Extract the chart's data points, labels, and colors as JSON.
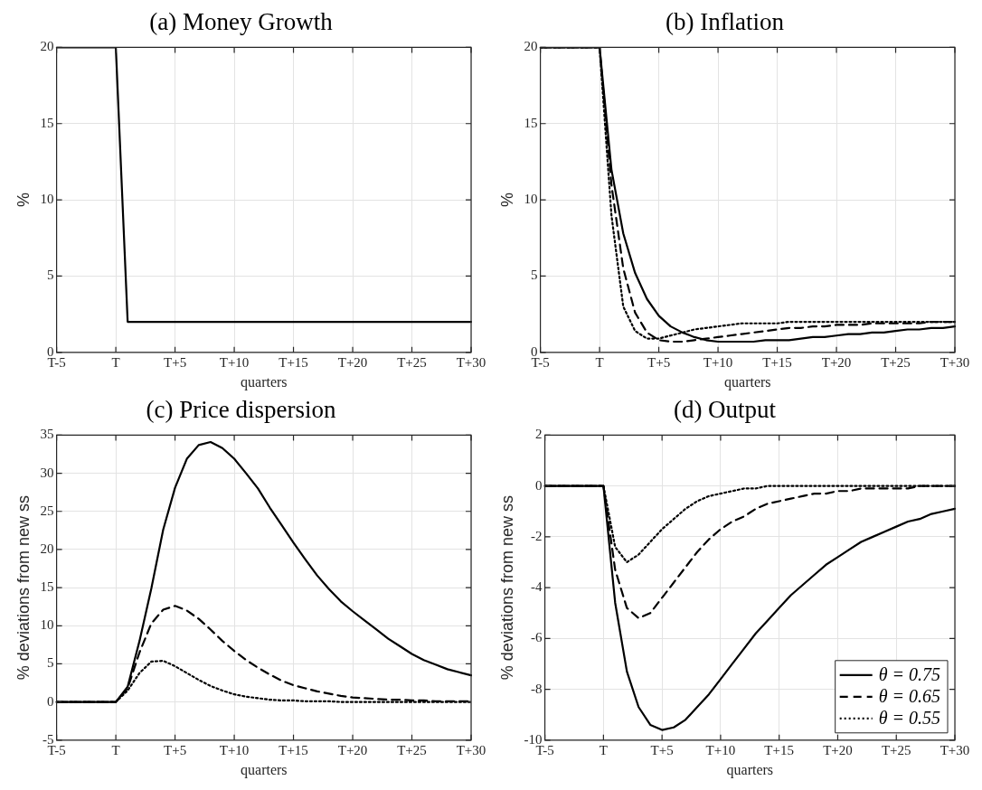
{
  "chart_data": [
    {
      "type": "line",
      "title": "(a) Money Growth",
      "xlabel": "quarters",
      "ylabel": "%",
      "categories": [
        "T-5",
        null,
        null,
        null,
        null,
        "T",
        null,
        null,
        null,
        null,
        "T+5",
        null,
        null,
        null,
        null,
        "T+10",
        null,
        null,
        null,
        null,
        "T+15",
        null,
        null,
        null,
        null,
        "T+20",
        null,
        null,
        null,
        null,
        "T+25",
        null,
        null,
        null,
        null,
        "T+30"
      ],
      "ylim": [
        0,
        20
      ],
      "yticks": [
        0,
        5,
        10,
        15,
        20
      ],
      "grid": true,
      "legend": false,
      "marker": "none",
      "series": [
        {
          "color": "#000000",
          "line_style": "solid",
          "values": [
            20,
            20,
            20,
            20,
            20,
            20,
            2,
            2,
            2,
            2,
            2,
            2,
            2,
            2,
            2,
            2,
            2,
            2,
            2,
            2,
            2,
            2,
            2,
            2,
            2,
            2,
            2,
            2,
            2,
            2,
            2,
            2,
            2,
            2,
            2,
            2
          ]
        }
      ]
    },
    {
      "type": "line",
      "title": "(b) Inflation",
      "xlabel": "quarters",
      "ylabel": "%",
      "categories": [
        "T-5",
        null,
        null,
        null,
        null,
        "T",
        null,
        null,
        null,
        null,
        "T+5",
        null,
        null,
        null,
        null,
        "T+10",
        null,
        null,
        null,
        null,
        "T+15",
        null,
        null,
        null,
        null,
        "T+20",
        null,
        null,
        null,
        null,
        "T+25",
        null,
        null,
        null,
        null,
        "T+30"
      ],
      "ylim": [
        0,
        20
      ],
      "yticks": [
        0,
        5,
        10,
        15,
        20
      ],
      "grid": true,
      "legend": false,
      "marker": "none",
      "series": [
        {
          "color": "#000000",
          "line_style": "solid",
          "values": [
            20,
            20,
            20,
            20,
            20,
            20,
            12,
            7.8,
            5.2,
            3.5,
            2.4,
            1.7,
            1.3,
            1.0,
            0.8,
            0.7,
            0.7,
            0.7,
            0.7,
            0.8,
            0.8,
            0.8,
            0.9,
            1.0,
            1.0,
            1.1,
            1.2,
            1.2,
            1.3,
            1.3,
            1.4,
            1.5,
            1.5,
            1.6,
            1.6,
            1.7
          ]
        },
        {
          "color": "#000000",
          "line_style": "dashed",
          "values": [
            20,
            20,
            20,
            20,
            20,
            20,
            11,
            5.5,
            2.6,
            1.3,
            0.8,
            0.7,
            0.7,
            0.8,
            0.9,
            1.0,
            1.1,
            1.2,
            1.3,
            1.4,
            1.5,
            1.6,
            1.6,
            1.7,
            1.7,
            1.8,
            1.8,
            1.8,
            1.9,
            1.9,
            1.9,
            1.9,
            1.9,
            2.0,
            2.0,
            2.0
          ]
        },
        {
          "color": "#000000",
          "line_style": "dotted",
          "values": [
            20,
            20,
            20,
            20,
            20,
            20,
            9,
            3.0,
            1.4,
            0.9,
            0.9,
            1.1,
            1.3,
            1.5,
            1.6,
            1.7,
            1.8,
            1.9,
            1.9,
            1.9,
            1.9,
            2.0,
            2.0,
            2.0,
            2.0,
            2.0,
            2.0,
            2.0,
            2.0,
            2.0,
            2.0,
            2.0,
            2.0,
            2.0,
            2.0,
            2.0
          ]
        }
      ]
    },
    {
      "type": "line",
      "title": "(c) Price dispersion",
      "xlabel": "quarters",
      "ylabel": "% deviations from new ss",
      "categories": [
        "T-5",
        null,
        null,
        null,
        null,
        "T",
        null,
        null,
        null,
        null,
        "T+5",
        null,
        null,
        null,
        null,
        "T+10",
        null,
        null,
        null,
        null,
        "T+15",
        null,
        null,
        null,
        null,
        "T+20",
        null,
        null,
        null,
        null,
        "T+25",
        null,
        null,
        null,
        null,
        "T+30"
      ],
      "ylim": [
        -5,
        35
      ],
      "yticks": [
        -5,
        0,
        5,
        10,
        15,
        20,
        25,
        30,
        35
      ],
      "grid": true,
      "legend": false,
      "marker": "none",
      "series": [
        {
          "color": "#000000",
          "line_style": "solid",
          "values": [
            0,
            0,
            0,
            0,
            0,
            0,
            2,
            8,
            14.9,
            22.6,
            28.1,
            31.9,
            33.7,
            34.1,
            33.3,
            31.9,
            30,
            28,
            25.5,
            23.2,
            20.9,
            18.7,
            16.6,
            14.8,
            13.2,
            11.9,
            10.7,
            9.5,
            8.3,
            7.3,
            6.3,
            5.5,
            4.9,
            4.3,
            3.9,
            3.5
          ]
        },
        {
          "color": "#000000",
          "line_style": "dashed",
          "values": [
            0,
            0,
            0,
            0,
            0,
            0,
            1.8,
            6.5,
            10.3,
            12.1,
            12.6,
            12.0,
            10.9,
            9.5,
            8.0,
            6.7,
            5.5,
            4.5,
            3.6,
            2.8,
            2.2,
            1.8,
            1.4,
            1.1,
            0.8,
            0.6,
            0.5,
            0.4,
            0.3,
            0.3,
            0.2,
            0.2,
            0.1,
            0.1,
            0.1,
            0.1
          ]
        },
        {
          "color": "#000000",
          "line_style": "dotted",
          "values": [
            0,
            0,
            0,
            0,
            0,
            0,
            1.5,
            3.8,
            5.3,
            5.4,
            4.7,
            3.8,
            2.9,
            2.1,
            1.5,
            1.0,
            0.7,
            0.5,
            0.3,
            0.2,
            0.2,
            0.1,
            0.1,
            0.1,
            0,
            0,
            0,
            0,
            0,
            0,
            0,
            0,
            0,
            0,
            0,
            0
          ]
        }
      ]
    },
    {
      "type": "line",
      "title": "(d) Output",
      "xlabel": "quarters",
      "ylabel": "% deviations from new ss",
      "categories": [
        "T-5",
        null,
        null,
        null,
        null,
        "T",
        null,
        null,
        null,
        null,
        "T+5",
        null,
        null,
        null,
        null,
        "T+10",
        null,
        null,
        null,
        null,
        "T+15",
        null,
        null,
        null,
        null,
        "T+20",
        null,
        null,
        null,
        null,
        "T+25",
        null,
        null,
        null,
        null,
        "T+30"
      ],
      "ylim": [
        -10,
        2
      ],
      "yticks": [
        -10,
        -8,
        -6,
        -4,
        -2,
        0,
        2
      ],
      "grid": true,
      "legend": "bottom right",
      "marker": "none",
      "series": [
        {
          "name": "θ = 0.75",
          "color": "#000000",
          "line_style": "solid",
          "values": [
            0,
            0,
            0,
            0,
            0,
            0,
            -4.6,
            -7.3,
            -8.7,
            -9.4,
            -9.6,
            -9.5,
            -9.2,
            -8.7,
            -8.2,
            -7.6,
            -7.0,
            -6.4,
            -5.8,
            -5.3,
            -4.8,
            -4.3,
            -3.9,
            -3.5,
            -3.1,
            -2.8,
            -2.5,
            -2.2,
            -2.0,
            -1.8,
            -1.6,
            -1.4,
            -1.3,
            -1.1,
            -1.0,
            -0.9
          ]
        },
        {
          "name": "θ = 0.65",
          "color": "#000000",
          "line_style": "dashed",
          "values": [
            0,
            0,
            0,
            0,
            0,
            0,
            -3.3,
            -4.8,
            -5.2,
            -5.0,
            -4.4,
            -3.8,
            -3.2,
            -2.6,
            -2.1,
            -1.7,
            -1.4,
            -1.2,
            -0.9,
            -0.7,
            -0.6,
            -0.5,
            -0.4,
            -0.3,
            -0.3,
            -0.2,
            -0.2,
            -0.1,
            -0.1,
            -0.1,
            -0.1,
            -0.1,
            0,
            0,
            0,
            0
          ]
        },
        {
          "name": "θ = 0.55",
          "color": "#000000",
          "line_style": "dotted",
          "values": [
            0,
            0,
            0,
            0,
            0,
            0,
            -2.4,
            -3.0,
            -2.7,
            -2.2,
            -1.7,
            -1.3,
            -0.9,
            -0.6,
            -0.4,
            -0.3,
            -0.2,
            -0.1,
            -0.1,
            0,
            0,
            0,
            0,
            0,
            0,
            0,
            0,
            0,
            0,
            0,
            0,
            0,
            0,
            0,
            0,
            0
          ]
        }
      ]
    }
  ]
}
